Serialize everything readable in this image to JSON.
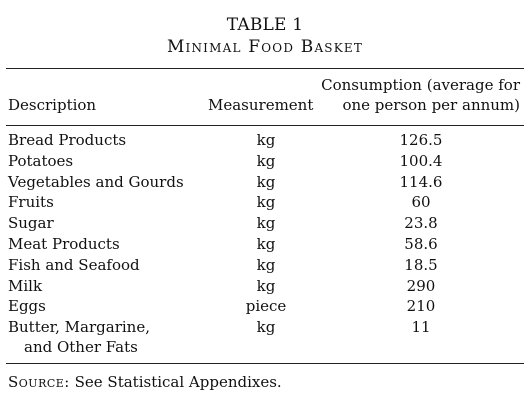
{
  "table": {
    "number": "TABLE 1",
    "title": "Minimal Food Basket",
    "headers": {
      "description": "Description",
      "measurement": "Measurement",
      "consumption_line1": "Consumption (average for",
      "consumption_line2": "one person per annum)"
    },
    "rows": [
      {
        "description": "Bread Products",
        "measurement": "kg",
        "consumption": "126.5"
      },
      {
        "description": "Potatoes",
        "measurement": "kg",
        "consumption": "100.4"
      },
      {
        "description": "Vegetables and Gourds",
        "measurement": "kg",
        "consumption": "114.6"
      },
      {
        "description": "Fruits",
        "measurement": "kg",
        "consumption": "60"
      },
      {
        "description": "Sugar",
        "measurement": "kg",
        "consumption": "23.8"
      },
      {
        "description": "Meat Products",
        "measurement": "kg",
        "consumption": "58.6"
      },
      {
        "description": "Fish and Seafood",
        "measurement": "kg",
        "consumption": "18.5"
      },
      {
        "description": "Milk",
        "measurement": "kg",
        "consumption": "290"
      },
      {
        "description": "Eggs",
        "measurement": "piece",
        "consumption": "210"
      },
      {
        "description": "Butter, Margarine,",
        "description_cont": "and Other Fats",
        "measurement": "kg",
        "consumption": "11"
      }
    ],
    "source": {
      "label": "Source:",
      "text": " See Statistical Appendixes."
    }
  }
}
